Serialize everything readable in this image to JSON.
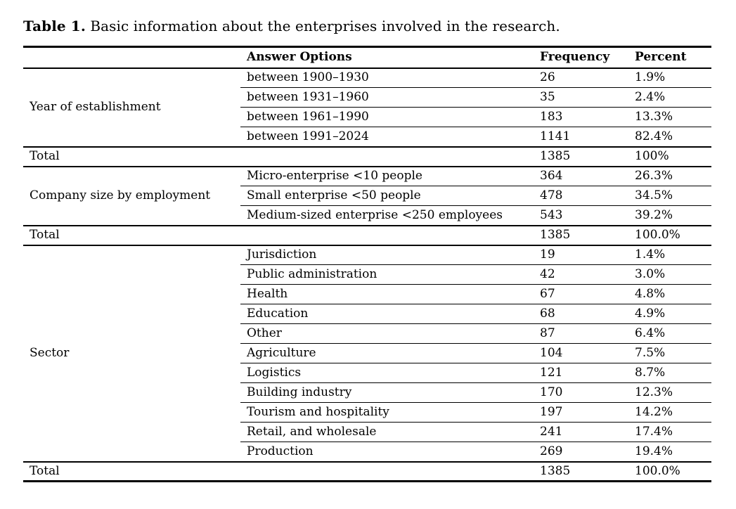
{
  "title": {
    "label": "Table 1.",
    "text": "Basic information about the enterprises involved in the research."
  },
  "colors": {
    "text": "#000000",
    "background": "#ffffff",
    "rule": "#000000"
  },
  "table": {
    "headers": {
      "category": "",
      "answer_options": "Answer Options",
      "frequency": "Frequency",
      "percent": "Percent"
    },
    "sections": [
      {
        "category": "Year of establishment",
        "rows": [
          {
            "option": "between 1900–1930",
            "frequency": "26",
            "percent": "1.9%"
          },
          {
            "option": "between 1931–1960",
            "frequency": "35",
            "percent": "2.4%"
          },
          {
            "option": "between 1961–1990",
            "frequency": "183",
            "percent": "13.3%"
          },
          {
            "option": "between 1991–2024",
            "frequency": "1141",
            "percent": "82.4%"
          }
        ],
        "total": {
          "label": "Total",
          "frequency": "1385",
          "percent": "100%"
        }
      },
      {
        "category": "Company size by employment",
        "rows": [
          {
            "option": "Micro-enterprise <10 people",
            "frequency": "364",
            "percent": "26.3%"
          },
          {
            "option": "Small enterprise <50 people",
            "frequency": "478",
            "percent": "34.5%"
          },
          {
            "option": "Medium-sized enterprise <250 employees",
            "frequency": "543",
            "percent": "39.2%"
          }
        ],
        "total": {
          "label": "Total",
          "frequency": "1385",
          "percent": "100.0%"
        }
      },
      {
        "category": "Sector",
        "rows": [
          {
            "option": "Jurisdiction",
            "frequency": "19",
            "percent": "1.4%"
          },
          {
            "option": "Public administration",
            "frequency": "42",
            "percent": "3.0%"
          },
          {
            "option": "Health",
            "frequency": "67",
            "percent": "4.8%"
          },
          {
            "option": "Education",
            "frequency": "68",
            "percent": "4.9%"
          },
          {
            "option": "Other",
            "frequency": "87",
            "percent": "6.4%"
          },
          {
            "option": "Agriculture",
            "frequency": "104",
            "percent": "7.5%"
          },
          {
            "option": "Logistics",
            "frequency": "121",
            "percent": "8.7%"
          },
          {
            "option": "Building industry",
            "frequency": "170",
            "percent": "12.3%"
          },
          {
            "option": "Tourism and hospitality",
            "frequency": "197",
            "percent": "14.2%"
          },
          {
            "option": "Retail, and wholesale",
            "frequency": "241",
            "percent": "17.4%"
          },
          {
            "option": "Production",
            "frequency": "269",
            "percent": "19.4%"
          }
        ],
        "total": {
          "label": "Total",
          "frequency": "1385",
          "percent": "100.0%"
        }
      }
    ]
  }
}
